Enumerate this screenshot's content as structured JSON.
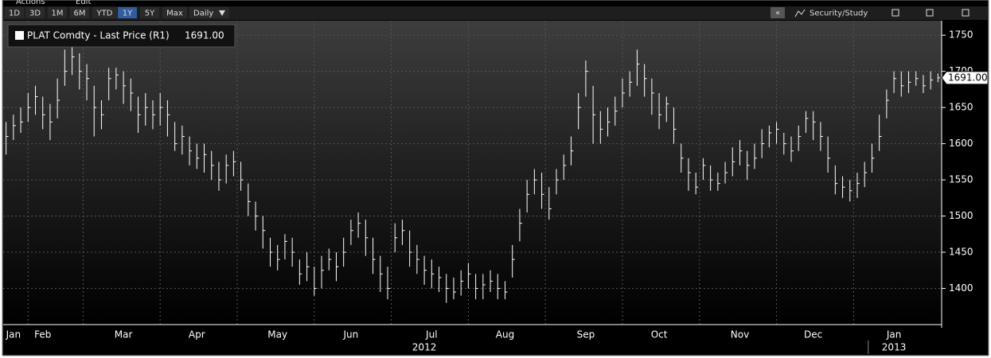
{
  "toolbar": {
    "menu": [
      "Actions",
      "Edit"
    ],
    "ranges": [
      "1D",
      "3D",
      "1M",
      "6M",
      "YTD",
      "1Y",
      "5Y",
      "Max"
    ],
    "selected_range": "1Y",
    "frequency": "Daily",
    "collapse": "«",
    "study": "Security/Study"
  },
  "chart_data": {
    "type": "ohlc",
    "series_name": "PLAT Comdty - Last Price (R1)",
    "last_value_label": "1691.00",
    "color": "#ffffff",
    "ylim": [
      1350,
      1770
    ],
    "yticks": [
      1400,
      1450,
      1500,
      1550,
      1600,
      1650,
      1700,
      1750
    ],
    "grid": true,
    "categories": [
      null,
      "Jan",
      null,
      null,
      null,
      "Feb",
      null,
      null,
      null,
      null,
      null,
      null,
      null,
      null,
      null,
      null,
      "Mar",
      null,
      null,
      null,
      null,
      null,
      null,
      null,
      null,
      null,
      "Apr",
      null,
      null,
      null,
      null,
      null,
      null,
      null,
      null,
      null,
      null,
      "May",
      null,
      null,
      null,
      null,
      null,
      null,
      null,
      null,
      null,
      "Jun",
      null,
      null,
      null,
      null,
      null,
      null,
      null,
      null,
      null,
      null,
      "Jul",
      null,
      null,
      null,
      null,
      null,
      null,
      null,
      null,
      null,
      "Aug",
      null,
      null,
      null,
      null,
      null,
      null,
      null,
      null,
      null,
      null,
      "Sep",
      null,
      null,
      null,
      null,
      null,
      null,
      null,
      null,
      null,
      "Oct",
      null,
      null,
      null,
      null,
      null,
      null,
      null,
      null,
      null,
      null,
      "Nov",
      null,
      null,
      null,
      null,
      null,
      null,
      null,
      null,
      null,
      "Dec",
      null,
      null,
      null,
      null,
      null,
      null,
      null,
      null,
      null,
      null,
      "Jan",
      null,
      null,
      null,
      null,
      null,
      null
    ],
    "year_categories": [
      null,
      null,
      null,
      null,
      null,
      null,
      null,
      null,
      null,
      null,
      null,
      null,
      null,
      null,
      null,
      null,
      null,
      null,
      null,
      null,
      null,
      null,
      null,
      null,
      null,
      null,
      null,
      null,
      null,
      null,
      null,
      null,
      null,
      null,
      null,
      null,
      null,
      null,
      null,
      null,
      null,
      null,
      null,
      null,
      null,
      null,
      null,
      null,
      null,
      null,
      null,
      null,
      null,
      null,
      null,
      null,
      null,
      "2012",
      null,
      null,
      null,
      null,
      null,
      null,
      null,
      null,
      null,
      null,
      null,
      null,
      null,
      null,
      null,
      null,
      null,
      null,
      null,
      null,
      null,
      null,
      null,
      null,
      null,
      null,
      null,
      null,
      null,
      null,
      null,
      null,
      null,
      null,
      null,
      null,
      null,
      null,
      null,
      null,
      null,
      null,
      null,
      null,
      null,
      null,
      null,
      null,
      null,
      null,
      null,
      null,
      null,
      null,
      null,
      null,
      null,
      null,
      null,
      null,
      null,
      null,
      null,
      "2013",
      null,
      null,
      null,
      null,
      null,
      null
    ],
    "high": [
      1630,
      1640,
      1650,
      1670,
      1680,
      1665,
      1655,
      1690,
      1730,
      1735,
      1725,
      1710,
      1680,
      1660,
      1705,
      1705,
      1700,
      1690,
      1665,
      1670,
      1660,
      1670,
      1660,
      1630,
      1625,
      1610,
      1600,
      1600,
      1590,
      1575,
      1585,
      1590,
      1575,
      1545,
      1520,
      1500,
      1470,
      1460,
      1475,
      1470,
      1440,
      1450,
      1430,
      1445,
      1455,
      1450,
      1470,
      1495,
      1505,
      1495,
      1470,
      1445,
      1430,
      1490,
      1495,
      1480,
      1460,
      1445,
      1440,
      1430,
      1420,
      1415,
      1425,
      1435,
      1420,
      1420,
      1425,
      1420,
      1410,
      1460,
      1510,
      1550,
      1565,
      1560,
      1540,
      1565,
      1585,
      1610,
      1670,
      1715,
      1680,
      1645,
      1650,
      1665,
      1690,
      1700,
      1730,
      1710,
      1690,
      1670,
      1665,
      1650,
      1600,
      1580,
      1560,
      1580,
      1570,
      1560,
      1575,
      1595,
      1605,
      1590,
      1600,
      1620,
      1625,
      1630,
      1615,
      1610,
      1625,
      1645,
      1645,
      1630,
      1610,
      1570,
      1555,
      1550,
      1560,
      1575,
      1600,
      1640,
      1675,
      1700,
      1700,
      1700,
      1700,
      1695,
      1700,
      1697
    ],
    "low": [
      1585,
      1605,
      1615,
      1630,
      1640,
      1620,
      1605,
      1635,
      1680,
      1695,
      1675,
      1660,
      1610,
      1620,
      1660,
      1675,
      1655,
      1645,
      1615,
      1625,
      1620,
      1625,
      1610,
      1590,
      1585,
      1570,
      1565,
      1560,
      1550,
      1535,
      1545,
      1555,
      1535,
      1500,
      1480,
      1455,
      1430,
      1425,
      1440,
      1430,
      1405,
      1410,
      1390,
      1400,
      1425,
      1410,
      1430,
      1460,
      1470,
      1445,
      1420,
      1395,
      1385,
      1450,
      1460,
      1430,
      1420,
      1405,
      1400,
      1395,
      1380,
      1385,
      1390,
      1400,
      1385,
      1385,
      1395,
      1385,
      1385,
      1415,
      1465,
      1505,
      1530,
      1510,
      1495,
      1530,
      1550,
      1570,
      1620,
      1665,
      1600,
      1600,
      1610,
      1625,
      1650,
      1665,
      1680,
      1665,
      1640,
      1620,
      1630,
      1600,
      1560,
      1535,
      1530,
      1550,
      1535,
      1535,
      1545,
      1555,
      1570,
      1550,
      1565,
      1580,
      1595,
      1600,
      1585,
      1575,
      1590,
      1615,
      1605,
      1590,
      1560,
      1530,
      1525,
      1520,
      1525,
      1540,
      1560,
      1590,
      1635,
      1670,
      1665,
      1670,
      1680,
      1670,
      1675,
      1685
    ],
    "close": [
      1610,
      1625,
      1630,
      1650,
      1665,
      1640,
      1630,
      1660,
      1700,
      1720,
      1700,
      1690,
      1650,
      1640,
      1690,
      1695,
      1680,
      1670,
      1640,
      1650,
      1640,
      1650,
      1640,
      1600,
      1610,
      1590,
      1580,
      1585,
      1570,
      1550,
      1570,
      1575,
      1550,
      1520,
      1500,
      1480,
      1450,
      1440,
      1465,
      1450,
      1420,
      1430,
      1400,
      1425,
      1440,
      1430,
      1450,
      1480,
      1490,
      1470,
      1440,
      1420,
      1400,
      1470,
      1480,
      1450,
      1440,
      1425,
      1420,
      1415,
      1400,
      1395,
      1410,
      1420,
      1400,
      1405,
      1410,
      1400,
      1395,
      1440,
      1490,
      1530,
      1550,
      1530,
      1510,
      1550,
      1570,
      1590,
      1650,
      1700,
      1640,
      1620,
      1630,
      1645,
      1670,
      1685,
      1710,
      1690,
      1670,
      1640,
      1655,
      1620,
      1580,
      1560,
      1540,
      1570,
      1550,
      1545,
      1560,
      1575,
      1590,
      1570,
      1580,
      1600,
      1615,
      1620,
      1600,
      1590,
      1610,
      1635,
      1630,
      1610,
      1580,
      1545,
      1540,
      1535,
      1545,
      1560,
      1580,
      1610,
      1660,
      1690,
      1680,
      1685,
      1690,
      1680,
      1688,
      1691
    ]
  }
}
